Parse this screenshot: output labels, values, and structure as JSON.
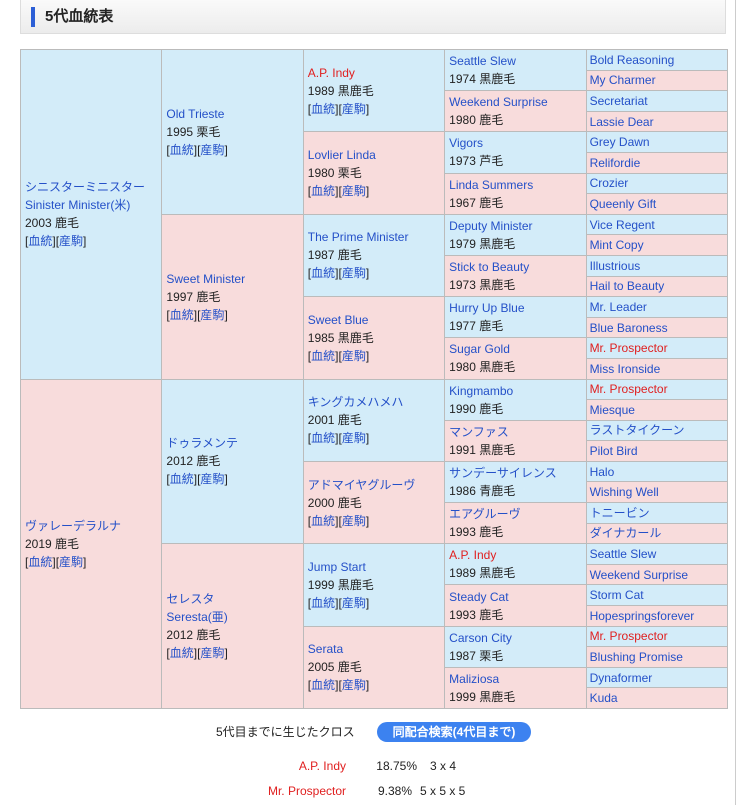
{
  "title": "5代血統表",
  "links": {
    "pedigree": "血統",
    "offspring": "産駒"
  },
  "colors": {
    "male": "#d3ecf9",
    "female": "#f8dcdc",
    "link": "#2450c8",
    "highlight": "#e02020",
    "button": "#3c82f0"
  },
  "gen1": [
    {
      "name": "シニスターミニスター",
      "name2": "Sinister Minister(米)",
      "info": "2003 鹿毛"
    },
    {
      "name": "ヴァレーデラルナ",
      "info": "2019 鹿毛"
    }
  ],
  "gen2": [
    {
      "name": "Old Trieste",
      "info": "1995 栗毛"
    },
    {
      "name": "Sweet Minister",
      "info": "1997 鹿毛"
    },
    {
      "name": "ドゥラメンテ",
      "info": "2012 鹿毛"
    },
    {
      "name": "セレスタ",
      "name2": "Seresta(亜)",
      "info": "2012 鹿毛"
    }
  ],
  "gen3": [
    {
      "name": "A.P. Indy",
      "info": "1989 黒鹿毛",
      "red": true
    },
    {
      "name": "Lovlier Linda",
      "info": "1980 栗毛"
    },
    {
      "name": "The Prime Minister",
      "info": "1987 鹿毛"
    },
    {
      "name": "Sweet Blue",
      "info": "1985 黒鹿毛"
    },
    {
      "name": "キングカメハメハ",
      "info": "2001 鹿毛"
    },
    {
      "name": "アドマイヤグルーヴ",
      "info": "2000 鹿毛"
    },
    {
      "name": "Jump Start",
      "info": "1999 黒鹿毛"
    },
    {
      "name": "Serata",
      "info": "2005 鹿毛"
    }
  ],
  "gen4": [
    {
      "name": "Seattle Slew",
      "info": "1974 黒鹿毛"
    },
    {
      "name": "Weekend Surprise",
      "info": "1980 鹿毛"
    },
    {
      "name": "Vigors",
      "info": "1973 芦毛"
    },
    {
      "name": "Linda Summers",
      "info": "1967 鹿毛"
    },
    {
      "name": "Deputy Minister",
      "info": "1979 黒鹿毛"
    },
    {
      "name": "Stick to Beauty",
      "info": "1973 黒鹿毛"
    },
    {
      "name": "Hurry Up Blue",
      "info": "1977 鹿毛"
    },
    {
      "name": "Sugar Gold",
      "info": "1980 黒鹿毛"
    },
    {
      "name": "Kingmambo",
      "info": "1990 鹿毛"
    },
    {
      "name": "マンファス",
      "info": "1991 黒鹿毛"
    },
    {
      "name": "サンデーサイレンス",
      "info": "1986 青鹿毛"
    },
    {
      "name": "エアグルーヴ",
      "info": "1993 鹿毛"
    },
    {
      "name": "A.P. Indy",
      "info": "1989 黒鹿毛",
      "red": true
    },
    {
      "name": "Steady Cat",
      "info": "1993 鹿毛"
    },
    {
      "name": "Carson City",
      "info": "1987 栗毛"
    },
    {
      "name": "Maliziosa",
      "info": "1999 黒鹿毛"
    }
  ],
  "gen5": [
    {
      "name": "Bold Reasoning"
    },
    {
      "name": "My Charmer"
    },
    {
      "name": "Secretariat"
    },
    {
      "name": "Lassie Dear"
    },
    {
      "name": "Grey Dawn"
    },
    {
      "name": "Relifordie"
    },
    {
      "name": "Crozier"
    },
    {
      "name": "Queenly Gift"
    },
    {
      "name": "Vice Regent"
    },
    {
      "name": "Mint Copy"
    },
    {
      "name": "Illustrious"
    },
    {
      "name": "Hail to Beauty"
    },
    {
      "name": "Mr. Leader"
    },
    {
      "name": "Blue Baroness"
    },
    {
      "name": "Mr. Prospector",
      "red": true
    },
    {
      "name": "Miss Ironside"
    },
    {
      "name": "Mr. Prospector",
      "red": true
    },
    {
      "name": "Miesque"
    },
    {
      "name": "ラストタイクーン"
    },
    {
      "name": "Pilot Bird"
    },
    {
      "name": "Halo"
    },
    {
      "name": "Wishing Well"
    },
    {
      "name": "トニービン"
    },
    {
      "name": "ダイナカール"
    },
    {
      "name": "Seattle Slew"
    },
    {
      "name": "Weekend Surprise"
    },
    {
      "name": "Storm Cat"
    },
    {
      "name": "Hopespringsforever"
    },
    {
      "name": "Mr. Prospector",
      "red": true
    },
    {
      "name": "Blushing Promise"
    },
    {
      "name": "Dynaformer"
    },
    {
      "name": "Kuda"
    }
  ],
  "cross": {
    "label": "5代目までに生じたクロス",
    "button": "同配合検索(4代目まで)",
    "rows": [
      {
        "name": "A.P. Indy",
        "pct": "18.75%",
        "gens": "3 x 4"
      },
      {
        "name": "Mr. Prospector",
        "pct": "9.38%",
        "gens": "5 x 5 x 5"
      }
    ]
  }
}
